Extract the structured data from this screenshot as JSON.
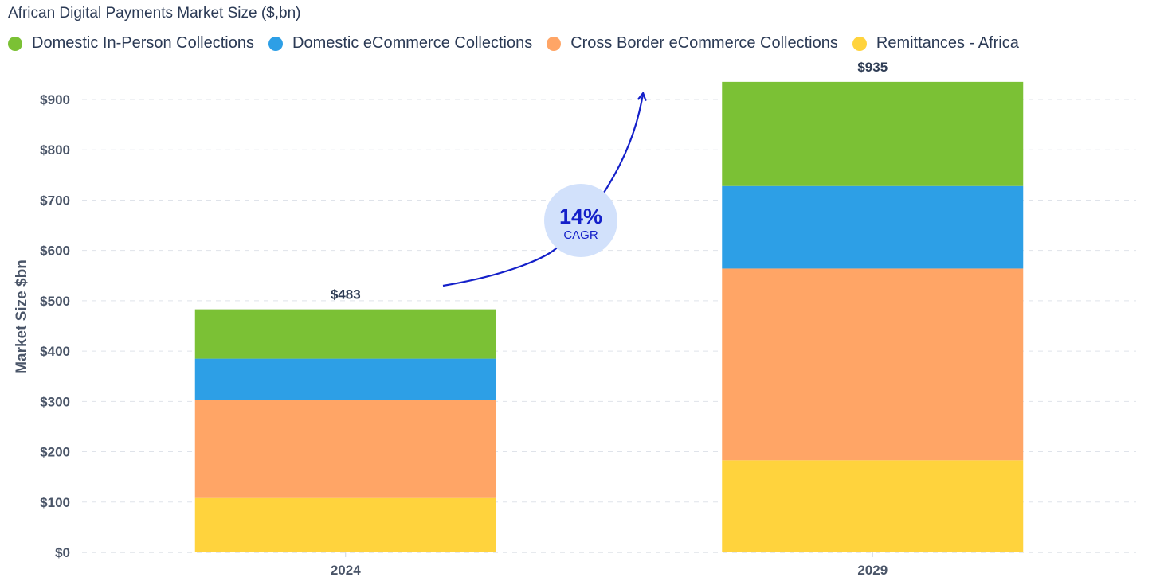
{
  "chart_data": {
    "type": "bar",
    "stacked": true,
    "title": "African Digital Payments Market Size ($,bn)",
    "xlabel": "",
    "ylabel": "Market Size $bn",
    "ylim": [
      0,
      900
    ],
    "ytick_step": 100,
    "ytick_labels": [
      "$0",
      "$100",
      "$200",
      "$300",
      "$400",
      "$500",
      "$600",
      "$700",
      "$800",
      "$900"
    ],
    "grid": true,
    "legend_position": "top-left",
    "categories": [
      "2024",
      "2029"
    ],
    "series": [
      {
        "name": "Remittances - Africa",
        "color": "#ffd33d",
        "values": [
          108,
          183
        ]
      },
      {
        "name": "Cross Border eCommerce Collections",
        "color": "#ffa566",
        "values": [
          195,
          381
        ]
      },
      {
        "name": "Domestic eCommerce Collections",
        "color": "#2d9fe6",
        "values": [
          82,
          164
        ]
      },
      {
        "name": "Domestic In-Person Collections",
        "color": "#7bc135",
        "values": [
          98,
          207
        ]
      }
    ],
    "legend_order": [
      "Domestic In-Person Collections",
      "Domestic eCommerce Collections",
      "Cross Border eCommerce Collections",
      "Remittances - Africa"
    ],
    "totals": [
      483,
      935
    ],
    "total_labels": [
      "$483",
      "$935"
    ],
    "annotation": {
      "value": "14%",
      "label": "CAGR",
      "color": "#1420c9",
      "bubble_color": "#d2e1fb"
    }
  }
}
